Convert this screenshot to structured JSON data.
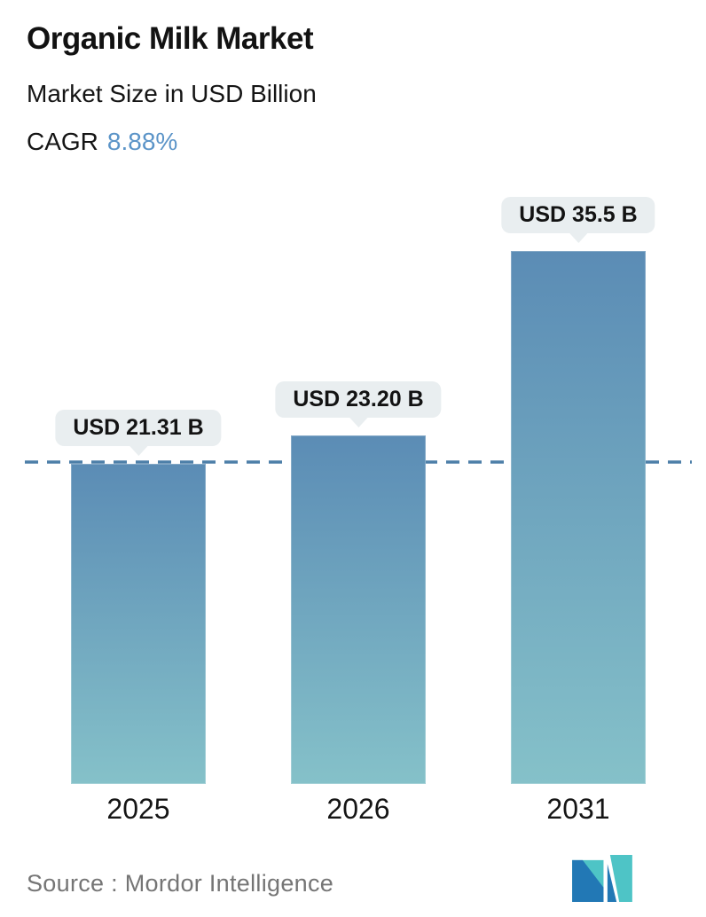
{
  "header": {
    "title": "Organic Milk Market",
    "subtitle": "Market Size in USD Billion",
    "cagr_label": "CAGR",
    "cagr_value": "8.88%"
  },
  "chart_data": {
    "type": "bar",
    "categories": [
      "2025",
      "2026",
      "2031"
    ],
    "values": [
      21.31,
      23.2,
      35.5
    ],
    "value_labels": [
      "USD 21.31 B",
      "USD 23.20 B",
      "USD 35.5 B"
    ],
    "title": "Organic Milk Market",
    "subtitle": "Market Size in USD Billion",
    "cagr": "8.88%",
    "ylim": [
      0,
      37
    ],
    "grid": false,
    "legend": false,
    "reference_line": {
      "value": 21.31,
      "style": "dashed"
    }
  },
  "footer": {
    "source_text": "Source :  Mordor Intelligence"
  },
  "colors": {
    "bar_top": "#5b8cb5",
    "bar_bottom": "#85c1c9",
    "dashed_line": "#4d7fa8",
    "cagr_accent": "#5b94c8",
    "callout_bg": "#e9eef0",
    "source_text": "#757575",
    "logo_teal": "#4ec4c6",
    "logo_blue": "#2278b5"
  }
}
